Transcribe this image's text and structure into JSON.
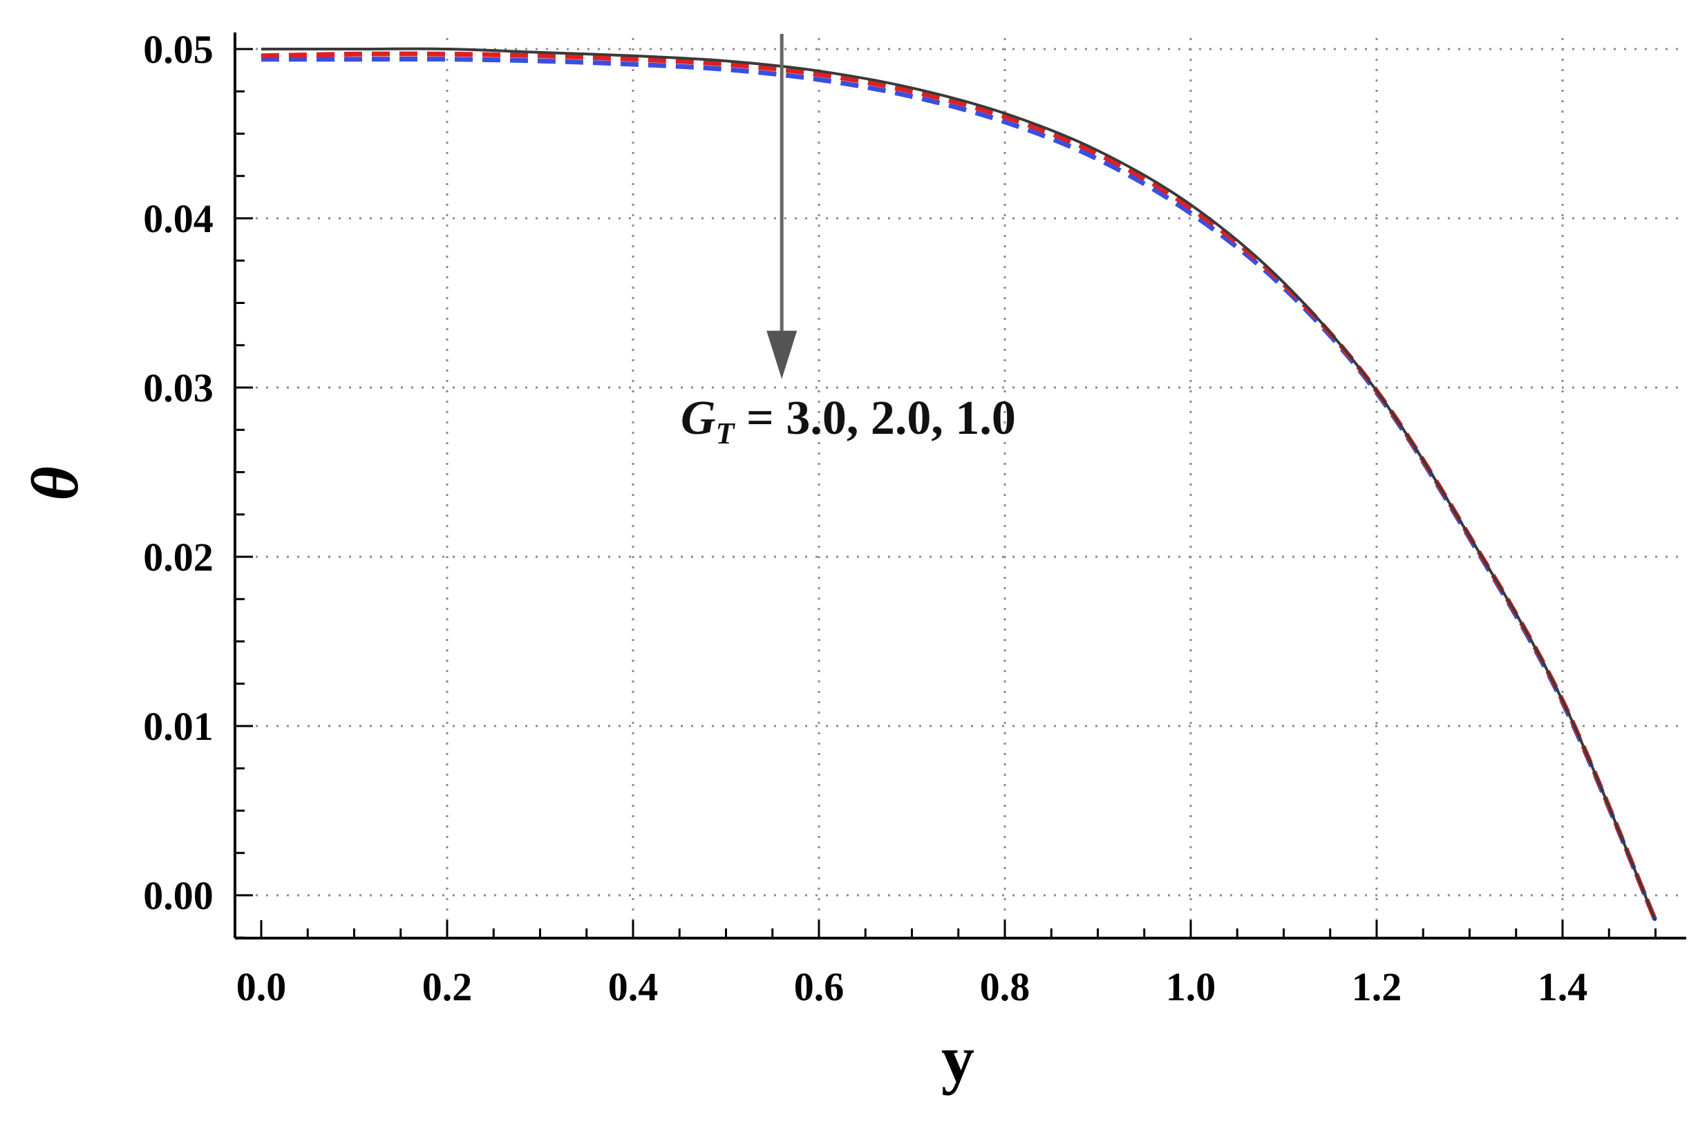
{
  "chart_data": {
    "type": "line",
    "title": "",
    "xlabel": "y",
    "ylabel": "θ",
    "xlim": [
      0.0,
      1.52
    ],
    "ylim": [
      -0.0025,
      0.05
    ],
    "xticks": [
      0.0,
      0.2,
      0.4,
      0.6,
      0.8,
      1.0,
      1.2,
      1.4
    ],
    "xtick_labels": [
      "0.0",
      "0.2",
      "0.4",
      "0.6",
      "0.8",
      "1.0",
      "1.2",
      "1.4"
    ],
    "yticks": [
      0.0,
      0.01,
      0.02,
      0.03,
      0.04,
      0.05
    ],
    "ytick_labels": [
      "0.00",
      "0.01",
      "0.02",
      "0.03",
      "0.04",
      "0.05"
    ],
    "grid": true,
    "grid_style": "dotted",
    "legend": "none",
    "annotation": {
      "symbol": "G",
      "subscript": "T",
      "text": " = 3.0, 2.0, 1.0",
      "arrow_x": 0.56,
      "arrow_from_y": 0.0509,
      "arrow_to_y": 0.0305
    },
    "series": [
      {
        "style": "solid",
        "color": "#3a3a3a",
        "x": [
          0.0,
          0.1,
          0.2,
          0.3,
          0.4,
          0.5,
          0.6,
          0.7,
          0.8,
          0.9,
          1.0,
          1.1,
          1.2,
          1.3,
          1.4,
          1.5
        ],
        "y": [
          0.05,
          0.05,
          0.05,
          0.0498,
          0.0496,
          0.0493,
          0.0487,
          0.0477,
          0.0462,
          0.044,
          0.0408,
          0.0362,
          0.0298,
          0.0212,
          0.0115,
          -0.0015
        ]
      },
      {
        "style": "dashed",
        "color": "#e02020",
        "x": [
          0.0,
          0.1,
          0.2,
          0.3,
          0.4,
          0.5,
          0.6,
          0.7,
          0.8,
          0.9,
          1.0,
          1.1,
          1.2,
          1.3,
          1.4,
          1.5
        ],
        "y": [
          0.0496,
          0.0497,
          0.0497,
          0.0496,
          0.0494,
          0.0491,
          0.0485,
          0.0475,
          0.046,
          0.0438,
          0.0406,
          0.0361,
          0.0298,
          0.0212,
          0.0115,
          -0.0015
        ]
      },
      {
        "style": "dashed",
        "color": "#3a4fe0",
        "x": [
          0.0,
          0.1,
          0.2,
          0.3,
          0.4,
          0.5,
          0.6,
          0.7,
          0.8,
          0.9,
          1.0,
          1.1,
          1.2,
          1.3,
          1.4,
          1.5
        ],
        "y": [
          0.0494,
          0.0494,
          0.0494,
          0.0493,
          0.0491,
          0.0488,
          0.0482,
          0.0472,
          0.0457,
          0.0435,
          0.0403,
          0.0359,
          0.0297,
          0.0211,
          0.0114,
          -0.0015
        ]
      }
    ]
  }
}
